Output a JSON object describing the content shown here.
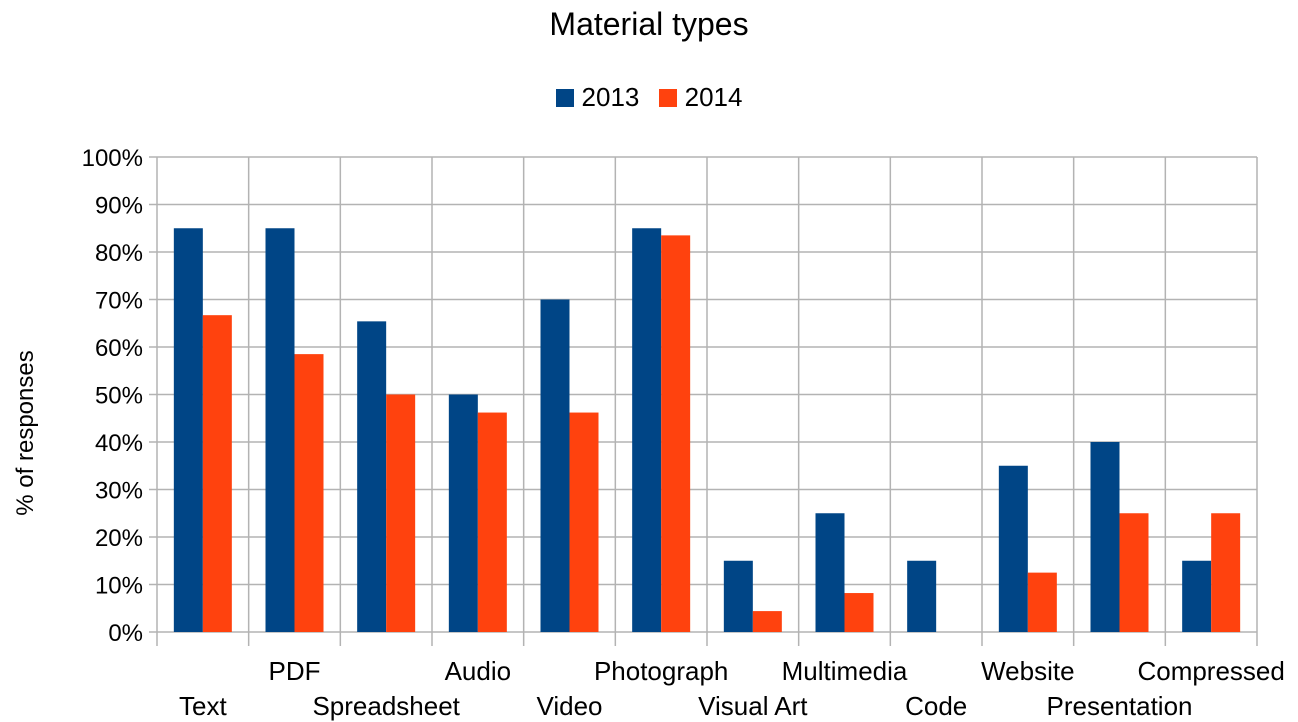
{
  "chart_data": {
    "type": "bar",
    "title": "Material types",
    "ylabel": "% of responses",
    "xlabel": "",
    "categories": [
      "Text",
      "PDF",
      "Spreadsheet",
      "Audio",
      "Video",
      "Photograph",
      "Visual Art",
      "Multimedia",
      "Code",
      "Website",
      "Presentation",
      "Compressed"
    ],
    "series": [
      {
        "name": "2013",
        "color": "#004586",
        "values": [
          85,
          85,
          65.4,
          50,
          70,
          85,
          15,
          25,
          15,
          35,
          40,
          15
        ]
      },
      {
        "name": "2014",
        "color": "#ff420e",
        "values": [
          66.7,
          58.5,
          50,
          46.2,
          46.2,
          83.5,
          4.4,
          8.2,
          0,
          12.5,
          25,
          25
        ]
      }
    ],
    "ylim": [
      0,
      100
    ],
    "yticks": [
      "0%",
      "10%",
      "20%",
      "30%",
      "40%",
      "50%",
      "60%",
      "70%",
      "80%",
      "90%",
      "100%"
    ],
    "grid": true,
    "legend_position": "top"
  }
}
